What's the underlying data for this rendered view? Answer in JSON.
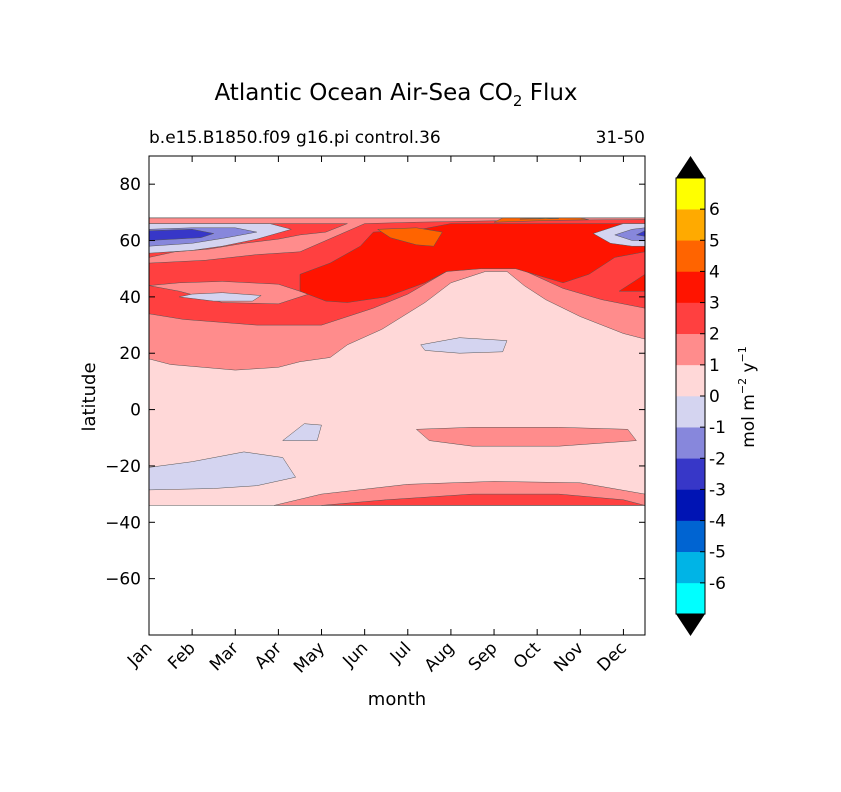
{
  "chart_data": {
    "type": "heatmap",
    "title": "Atlantic Ocean Air-Sea CO",
    "title_subscript": "2",
    "title_suffix": " Flux",
    "subtitle_left": "b.e15.B1850.f09 g16.pi control.36",
    "subtitle_right": "31-50",
    "xlabel": "month",
    "ylabel": "latitude",
    "xlim": [
      0,
      11.5
    ],
    "ylim": [
      -80,
      90
    ],
    "x_ticks": [
      0,
      1,
      2,
      3,
      4,
      5,
      6,
      7,
      8,
      9,
      10,
      11
    ],
    "x_tick_labels": [
      "Jan",
      "Feb",
      "Mar",
      "Apr",
      "May",
      "Jun",
      "Jul",
      "Aug",
      "Sep",
      "Oct",
      "Nov",
      "Dec"
    ],
    "y_ticks": [
      80,
      60,
      40,
      20,
      0,
      -20,
      -40,
      -60
    ],
    "y_tick_labels": [
      "80",
      "60",
      "40",
      "20",
      "0",
      "−20",
      "−40",
      "−60"
    ],
    "data_lat_range": [
      -34,
      68
    ],
    "colorbar": {
      "label_main": "mol m",
      "label_exp1": "−2",
      "label_mid": " y",
      "label_exp2": "−1",
      "levels": [
        -7,
        -6,
        -5,
        -4,
        -3,
        -2,
        -1,
        0,
        1,
        2,
        3,
        4,
        5,
        6,
        7
      ],
      "colors": [
        "#00ffff",
        "#00b4e6",
        "#0064d2",
        "#0014b4",
        "#3737c8",
        "#8787dc",
        "#d4d4f0",
        "#ffd8d8",
        "#ff8c8c",
        "#ff4040",
        "#ff1400",
        "#ff6400",
        "#ffaa00",
        "#ffff00"
      ],
      "tick_labels": [
        "-6",
        "-5",
        "-4",
        "-3",
        "-2",
        "-1",
        "0",
        "1",
        "2",
        "3",
        "4",
        "5",
        "6"
      ],
      "extend": "both",
      "extend_color": "#000000"
    },
    "regions": [
      {
        "name": "neutral-slightly-negative",
        "level": 0,
        "points": [
          [
            0,
            -34
          ],
          [
            11.5,
            -34
          ],
          [
            11.5,
            68
          ],
          [
            0,
            68
          ]
        ]
      },
      {
        "name": "south-positive-band",
        "level": 1,
        "points": [
          [
            2.9,
            -34
          ],
          [
            4,
            -30
          ],
          [
            6,
            -26.5
          ],
          [
            8,
            -25.5
          ],
          [
            10,
            -26
          ],
          [
            11.5,
            -30
          ],
          [
            11.5,
            -34
          ]
        ]
      },
      {
        "name": "south-positive-band-strong",
        "level": 2,
        "points": [
          [
            4,
            -34
          ],
          [
            5.5,
            -32
          ],
          [
            7.5,
            -30
          ],
          [
            9.5,
            -30
          ],
          [
            11,
            -32
          ],
          [
            11.5,
            -34
          ]
        ]
      },
      {
        "name": "southwest-negative",
        "level": -1,
        "points": [
          [
            0,
            -20.5
          ],
          [
            1,
            -18.5
          ],
          [
            2.2,
            -15
          ],
          [
            3.1,
            -17
          ],
          [
            3.4,
            -24
          ],
          [
            2.5,
            -27
          ],
          [
            1.5,
            -28
          ],
          [
            0,
            -28.5
          ]
        ]
      },
      {
        "name": "small-negative-spot",
        "level": -1,
        "points": [
          [
            3.1,
            -11
          ],
          [
            3.6,
            -5
          ],
          [
            4,
            -5.5
          ],
          [
            3.9,
            -11
          ]
        ]
      },
      {
        "name": "equatorial-positive",
        "level": 1,
        "points": [
          [
            6.2,
            -7
          ],
          [
            7.5,
            -6.3
          ],
          [
            9.5,
            -6.3
          ],
          [
            11.1,
            -7
          ],
          [
            11.3,
            -11
          ],
          [
            9.5,
            -13
          ],
          [
            7.5,
            -13
          ],
          [
            6.5,
            -11
          ]
        ]
      },
      {
        "name": "subtropical-negative",
        "level": -1,
        "points": [
          [
            6.3,
            23
          ],
          [
            7.2,
            25.5
          ],
          [
            8.3,
            24.5
          ],
          [
            8.2,
            20.5
          ],
          [
            7.2,
            20
          ],
          [
            6.4,
            21
          ]
        ]
      },
      {
        "name": "north-positive-band",
        "level": 1,
        "points": [
          [
            0,
            18
          ],
          [
            0.5,
            16
          ],
          [
            2,
            14
          ],
          [
            3,
            15
          ],
          [
            3.5,
            17
          ],
          [
            4.2,
            18.5
          ],
          [
            4.6,
            23
          ],
          [
            5.4,
            28.5
          ],
          [
            6.4,
            38
          ],
          [
            7,
            45
          ],
          [
            7.8,
            49
          ],
          [
            8.3,
            49
          ],
          [
            8.7,
            44
          ],
          [
            9.2,
            39
          ],
          [
            10,
            33
          ],
          [
            11,
            27
          ],
          [
            11.5,
            25
          ],
          [
            11.5,
            68
          ],
          [
            0,
            68
          ]
        ]
      },
      {
        "name": "north-positive-band-strong",
        "level": 2,
        "points": [
          [
            0,
            34
          ],
          [
            0.8,
            32
          ],
          [
            2.5,
            30
          ],
          [
            4,
            30
          ],
          [
            5.2,
            36
          ],
          [
            6,
            41
          ],
          [
            6.9,
            49
          ],
          [
            8,
            52
          ],
          [
            8.6,
            50
          ],
          [
            9.6,
            43
          ],
          [
            10.5,
            39
          ],
          [
            11.5,
            36
          ],
          [
            11.5,
            68
          ],
          [
            0,
            68
          ]
        ]
      },
      {
        "name": "mid-north-light",
        "level": 1,
        "points": [
          [
            0,
            44
          ],
          [
            0.7,
            42
          ],
          [
            1.7,
            38
          ],
          [
            3,
            37.5
          ],
          [
            3.7,
            41
          ],
          [
            3,
            44.5
          ],
          [
            1.7,
            45.5
          ],
          [
            0.7,
            45
          ]
        ]
      },
      {
        "name": "mid-north-negative",
        "level": -1,
        "points": [
          [
            0.7,
            40
          ],
          [
            1.5,
            38.5
          ],
          [
            2.4,
            38.5
          ],
          [
            2.6,
            40.5
          ],
          [
            1.7,
            41.5
          ],
          [
            1,
            41
          ]
        ]
      },
      {
        "name": "north-red",
        "level": 3,
        "points": [
          [
            3.5,
            42
          ],
          [
            4.1,
            38.5
          ],
          [
            4.6,
            38
          ],
          [
            5.5,
            40
          ],
          [
            6.4,
            45
          ],
          [
            6.9,
            49
          ],
          [
            7.7,
            50
          ],
          [
            8.5,
            50
          ],
          [
            9.6,
            45
          ],
          [
            10.2,
            48
          ],
          [
            10.8,
            54
          ],
          [
            11.5,
            56
          ],
          [
            11.5,
            66
          ],
          [
            7,
            66
          ],
          [
            6.3,
            64
          ],
          [
            5.2,
            63
          ],
          [
            4.9,
            58
          ],
          [
            4.2,
            52
          ],
          [
            3.5,
            48
          ]
        ]
      },
      {
        "name": "north-red-east",
        "level": 3,
        "points": [
          [
            10.9,
            42
          ],
          [
            11.3,
            46
          ],
          [
            11.5,
            48
          ],
          [
            11.5,
            42
          ]
        ]
      },
      {
        "name": "sep-deep-red",
        "level": 4,
        "points": [
          [
            5.3,
            64
          ],
          [
            5.6,
            61
          ],
          [
            6.2,
            58.5
          ],
          [
            6.6,
            58
          ],
          [
            6.8,
            63
          ],
          [
            6.2,
            64.5
          ]
        ]
      },
      {
        "name": "north-pale-high",
        "level": 1,
        "points": [
          [
            0,
            52
          ],
          [
            1.3,
            53
          ],
          [
            2.5,
            55
          ],
          [
            3.5,
            56
          ],
          [
            4.4,
            62
          ],
          [
            5,
            66
          ],
          [
            6.2,
            66.5
          ],
          [
            8,
            67
          ],
          [
            11.5,
            67.5
          ],
          [
            11.5,
            68
          ],
          [
            0,
            68
          ]
        ]
      },
      {
        "name": "north-west-pink",
        "level": 2,
        "points": [
          [
            0,
            54
          ],
          [
            0.6,
            56
          ],
          [
            1.4,
            57
          ],
          [
            2.2,
            59
          ],
          [
            3,
            60.5
          ],
          [
            3.5,
            62
          ],
          [
            4.1,
            63
          ],
          [
            4.6,
            66
          ],
          [
            0,
            66
          ]
        ]
      },
      {
        "name": "northwest-negative",
        "level": -1,
        "points": [
          [
            0,
            55.5
          ],
          [
            1,
            56.5
          ],
          [
            1.7,
            58
          ],
          [
            2.5,
            60.5
          ],
          [
            3.3,
            64
          ],
          [
            2.8,
            66
          ],
          [
            1.5,
            66
          ],
          [
            0,
            66
          ]
        ]
      },
      {
        "name": "northwest-negative-mid",
        "level": -2,
        "points": [
          [
            0,
            58
          ],
          [
            1,
            59
          ],
          [
            1.8,
            61
          ],
          [
            2.5,
            63
          ],
          [
            2,
            64.5
          ],
          [
            1,
            64.5
          ],
          [
            0,
            64
          ]
        ]
      },
      {
        "name": "northwest-negative-strong",
        "level": -3,
        "points": [
          [
            0,
            60
          ],
          [
            0.6,
            60.5
          ],
          [
            1.2,
            61
          ],
          [
            1.5,
            62.5
          ],
          [
            1,
            64
          ],
          [
            0,
            63.5
          ]
        ]
      },
      {
        "name": "northeast-negative",
        "level": -1,
        "points": [
          [
            10.3,
            62.5
          ],
          [
            10.7,
            59
          ],
          [
            11.2,
            58
          ],
          [
            11.5,
            58
          ],
          [
            11.5,
            66
          ],
          [
            11,
            66
          ]
        ]
      },
      {
        "name": "northeast-negative-mid",
        "level": -2,
        "points": [
          [
            10.8,
            62
          ],
          [
            11.2,
            60
          ],
          [
            11.5,
            60
          ],
          [
            11.5,
            64.5
          ],
          [
            11.2,
            64
          ]
        ]
      },
      {
        "name": "northeast-negative-strong",
        "level": -3,
        "points": [
          [
            11.3,
            62
          ],
          [
            11.5,
            61.5
          ],
          [
            11.5,
            63.5
          ]
        ]
      },
      {
        "name": "north-top-orange",
        "level": 4,
        "points": [
          [
            8,
            66.5
          ],
          [
            9,
            67
          ],
          [
            10.2,
            67.4
          ],
          [
            10,
            68
          ],
          [
            8.2,
            68
          ]
        ]
      },
      {
        "name": "north-top-amber",
        "level": 5,
        "points": [
          [
            8.6,
            67.6
          ],
          [
            9.5,
            67.8
          ],
          [
            9.2,
            68
          ]
        ]
      }
    ]
  }
}
